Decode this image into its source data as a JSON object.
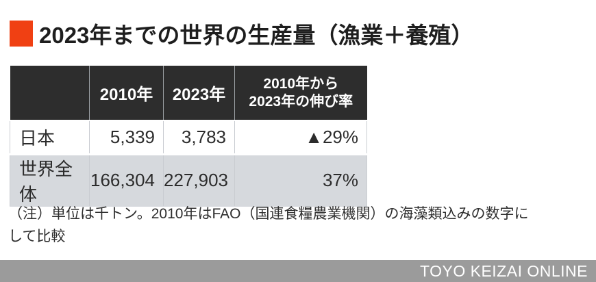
{
  "title": {
    "text": "2023年までの世界の生産量（漁業＋養殖）",
    "accent_color": "#f04013"
  },
  "table": {
    "headers": [
      "",
      "2010年",
      "2023年"
    ],
    "growth_header": {
      "line1": "2010年から",
      "line2": "2023年の伸び率"
    },
    "rows": [
      {
        "label": "日本",
        "v2010": "5,339",
        "v2023": "3,783",
        "growth": "▲29%"
      },
      {
        "label": "世界全体",
        "v2010": "166,304",
        "v2023": "227,903",
        "growth": "37%"
      }
    ],
    "header_bg": "#2d2d2d",
    "alt_row_bg": "#d6d9dd"
  },
  "note": {
    "line1": "（注）単位は千トン。2010年はFAO（国連食糧農業機関）の海藻類込みの数字に",
    "line2": "して比較"
  },
  "footer": {
    "brand": "TOYO KEIZAI ONLINE",
    "bg": "#9b9b9b"
  },
  "chart_data": {
    "type": "table",
    "title": "2023年までの世界の生産量（漁業＋養殖）",
    "columns": [
      "",
      "2010年",
      "2023年",
      "2010年から2023年の伸び率"
    ],
    "rows": [
      {
        "label": "日本",
        "y2010": 5339,
        "y2023": 3783,
        "growth_pct": -29
      },
      {
        "label": "世界全体",
        "y2010": 166304,
        "y2023": 227903,
        "growth_pct": 37
      }
    ],
    "unit": "千トン",
    "note": "（注）単位は千トン。2010年はFAO（国連食糧農業機関）の海藻類込みの数字にして比較",
    "source": "TOYO KEIZAI ONLINE"
  }
}
